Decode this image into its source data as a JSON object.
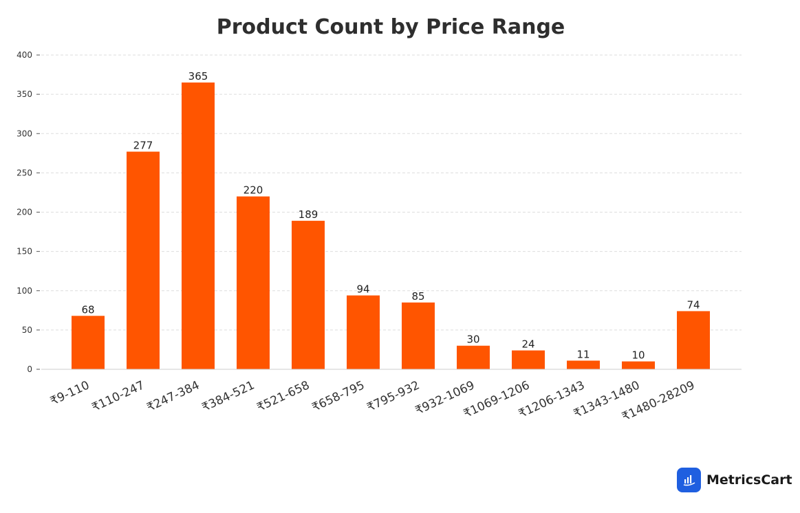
{
  "chart_data": {
    "type": "bar",
    "title": "Product Count by Price Range",
    "xlabel": "",
    "ylabel": "",
    "categories": [
      "₹9-110",
      "₹110-247",
      "₹247-384",
      "₹384-521",
      "₹521-658",
      "₹658-795",
      "₹795-932",
      "₹932-1069",
      "₹1069-1206",
      "₹1206-1343",
      "₹1343-1480",
      "₹1480-28209"
    ],
    "values": [
      68,
      277,
      365,
      220,
      189,
      94,
      85,
      30,
      24,
      11,
      10,
      74
    ],
    "ylim": [
      0,
      400
    ],
    "yticks": [
      0,
      50,
      100,
      150,
      200,
      250,
      300,
      350,
      400
    ],
    "grid": true,
    "data_labels": true,
    "colors": {
      "bar": "#ff5500"
    }
  },
  "brand": {
    "name": "MetricsCart",
    "logo_icon": "bar-chart-icon",
    "logo_color": "#1f5fe0"
  }
}
